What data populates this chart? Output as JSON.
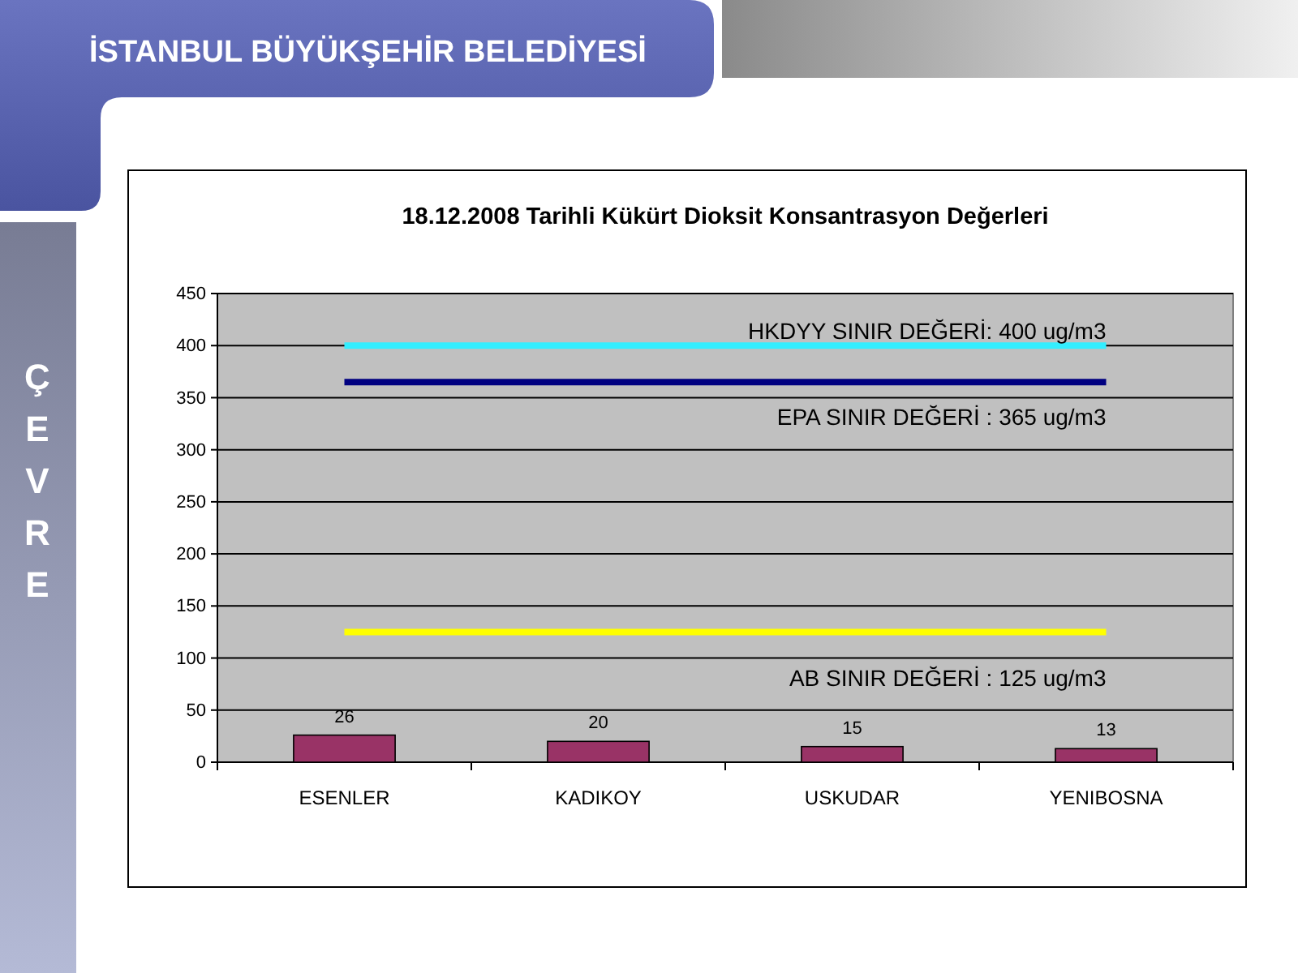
{
  "chart_data": {
    "type": "bar",
    "title": "18.12.2008 Tarihli Kükürt Dioksit Konsantrasyon Değerleri",
    "categories": [
      "ESENLER",
      "KADIKOY",
      "USKUDAR",
      "YENIBOSNA"
    ],
    "values": [
      26,
      20,
      15,
      13
    ],
    "color": "#993366",
    "ylim": [
      0,
      450
    ],
    "yticks": [
      0,
      50,
      100,
      150,
      200,
      250,
      300,
      350,
      400,
      450
    ],
    "grid": "y",
    "data_labels": true,
    "ref_lines": [
      {
        "axis": "y",
        "value": 400,
        "label": "HKDYY SINIR DEĞERİ: 400 ug/m3",
        "color": "#33eeff"
      },
      {
        "axis": "y",
        "value": 365,
        "label": "EPA SINIR DEĞERİ : 365 ug/m3",
        "color": "#000080"
      },
      {
        "axis": "y",
        "value": 125,
        "label": "AB SINIR DEĞERİ : 125 ug/m3",
        "color": "#ffff00"
      }
    ],
    "annotations": [
      "İSTANBUL BÜYÜKŞEHİR BELEDİYESİ",
      "ÇEVRE"
    ]
  }
}
